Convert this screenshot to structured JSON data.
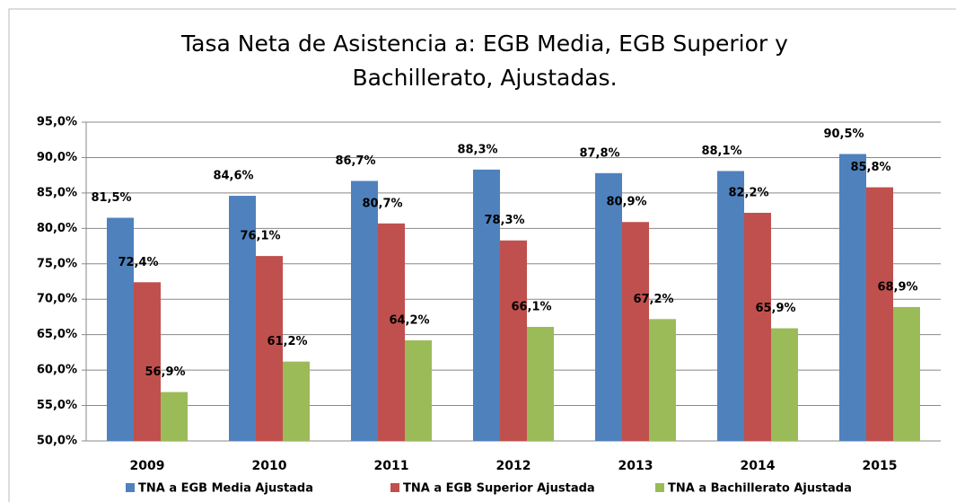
{
  "chart_data": {
    "type": "bar",
    "title": "Tasa Neta de Asistencia a: EGB Media, EGB Superior y Bachillerato, Ajustadas.",
    "categories": [
      "2009",
      "2010",
      "2011",
      "2012",
      "2013",
      "2014",
      "2015"
    ],
    "series": [
      {
        "name": "TNA a EGB Media Ajustada",
        "color": "#4f81bd",
        "values": [
          81.5,
          84.6,
          86.7,
          88.3,
          87.8,
          88.1,
          90.5
        ],
        "value_labels": [
          "81,5%",
          "84,6%",
          "86,7%",
          "88,3%",
          "87,8%",
          "88,1%",
          "90,5%"
        ]
      },
      {
        "name": "TNA a EGB Superior Ajustada",
        "color": "#c0504d",
        "values": [
          72.4,
          76.1,
          80.7,
          78.3,
          80.9,
          82.2,
          85.8
        ],
        "value_labels": [
          "72,4%",
          "76,1%",
          "80,7%",
          "78,3%",
          "80,9%",
          "82,2%",
          "85,8%"
        ]
      },
      {
        "name": "TNA a Bachillerato Ajustada",
        "color": "#9bbb59",
        "values": [
          56.9,
          61.2,
          64.2,
          66.1,
          67.2,
          65.9,
          68.9
        ],
        "value_labels": [
          "56,9%",
          "61,2%",
          "64,2%",
          "66,1%",
          "67,2%",
          "65,9%",
          "68,9%"
        ]
      }
    ],
    "ylim": [
      50,
      95
    ],
    "yticks": [
      {
        "value": 50,
        "label": "50,0%"
      },
      {
        "value": 55,
        "label": "55,0%"
      },
      {
        "value": 60,
        "label": "60,0%"
      },
      {
        "value": 65,
        "label": "65,0%"
      },
      {
        "value": 70,
        "label": "70,0%"
      },
      {
        "value": 75,
        "label": "75,0%"
      },
      {
        "value": 80,
        "label": "80,0%"
      },
      {
        "value": 85,
        "label": "85,0%"
      },
      {
        "value": 90,
        "label": "90,0%"
      },
      {
        "value": 95,
        "label": "95,0%"
      }
    ],
    "grid": true,
    "legend": "bottom"
  }
}
